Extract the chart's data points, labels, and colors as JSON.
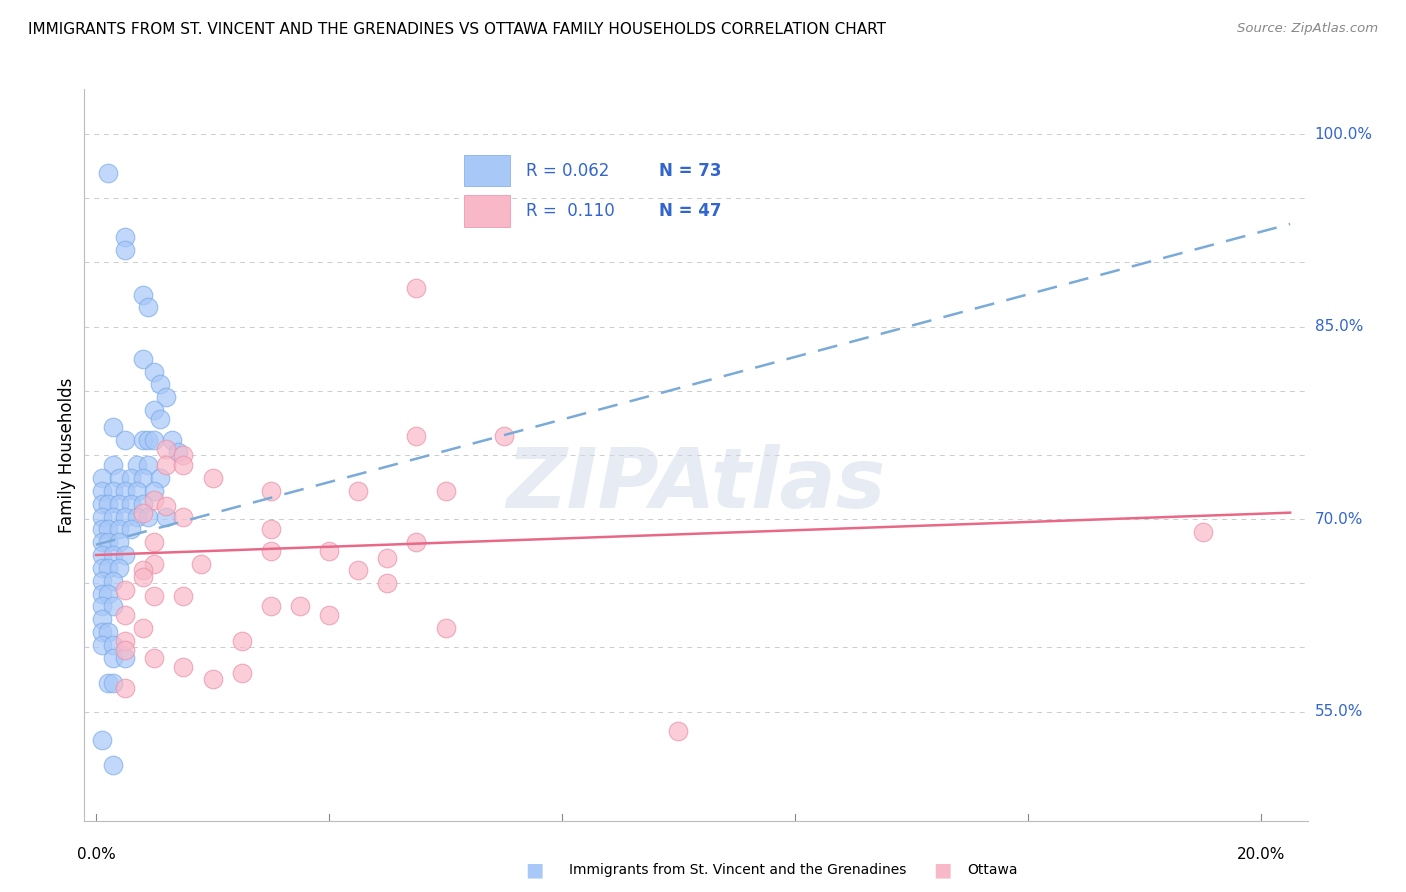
{
  "title": "IMMIGRANTS FROM ST. VINCENT AND THE GRENADINES VS OTTAWA FAMILY HOUSEHOLDS CORRELATION CHART",
  "source": "Source: ZipAtlas.com",
  "ylabel": "Family Households",
  "ymin": 0.465,
  "ymax": 1.035,
  "xmin": -0.002,
  "xmax": 0.208,
  "blue_color": "#a8c8f8",
  "pink_color": "#f8b8c8",
  "blue_edge_color": "#7aaae8",
  "pink_edge_color": "#e890a8",
  "blue_line_color": "#7aaad8",
  "pink_line_color": "#e86888",
  "legend_text_color": "#3366cc",
  "ytick_positions": [
    0.55,
    0.7,
    0.85,
    1.0
  ],
  "ytick_labels": [
    "55.0%",
    "70.0%",
    "85.0%",
    "100.0%"
  ],
  "ytick_minor": [
    0.55,
    0.6,
    0.65,
    0.7,
    0.75,
    0.8,
    0.85,
    0.9,
    0.95,
    1.0
  ],
  "xtick_positions": [
    0.0,
    0.04,
    0.08,
    0.12,
    0.16,
    0.2
  ],
  "watermark": "ZIPAtlas",
  "blue_trend_x": [
    0.0,
    0.205
  ],
  "blue_trend_y": [
    0.68,
    0.93
  ],
  "pink_trend_x": [
    0.0,
    0.205
  ],
  "pink_trend_y": [
    0.672,
    0.705
  ],
  "blue_dots": [
    [
      0.002,
      0.97
    ],
    [
      0.005,
      0.92
    ],
    [
      0.005,
      0.91
    ],
    [
      0.008,
      0.875
    ],
    [
      0.009,
      0.865
    ],
    [
      0.008,
      0.825
    ],
    [
      0.01,
      0.815
    ],
    [
      0.011,
      0.805
    ],
    [
      0.012,
      0.795
    ],
    [
      0.01,
      0.785
    ],
    [
      0.011,
      0.778
    ],
    [
      0.003,
      0.772
    ],
    [
      0.005,
      0.762
    ],
    [
      0.008,
      0.762
    ],
    [
      0.009,
      0.762
    ],
    [
      0.01,
      0.762
    ],
    [
      0.013,
      0.762
    ],
    [
      0.014,
      0.752
    ],
    [
      0.003,
      0.742
    ],
    [
      0.007,
      0.742
    ],
    [
      0.009,
      0.742
    ],
    [
      0.001,
      0.732
    ],
    [
      0.004,
      0.732
    ],
    [
      0.006,
      0.732
    ],
    [
      0.008,
      0.732
    ],
    [
      0.011,
      0.732
    ],
    [
      0.001,
      0.722
    ],
    [
      0.003,
      0.722
    ],
    [
      0.005,
      0.722
    ],
    [
      0.007,
      0.722
    ],
    [
      0.01,
      0.722
    ],
    [
      0.001,
      0.712
    ],
    [
      0.002,
      0.712
    ],
    [
      0.004,
      0.712
    ],
    [
      0.006,
      0.712
    ],
    [
      0.008,
      0.712
    ],
    [
      0.001,
      0.702
    ],
    [
      0.003,
      0.702
    ],
    [
      0.005,
      0.702
    ],
    [
      0.007,
      0.702
    ],
    [
      0.009,
      0.702
    ],
    [
      0.012,
      0.702
    ],
    [
      0.001,
      0.692
    ],
    [
      0.002,
      0.692
    ],
    [
      0.004,
      0.692
    ],
    [
      0.006,
      0.692
    ],
    [
      0.001,
      0.682
    ],
    [
      0.002,
      0.682
    ],
    [
      0.004,
      0.682
    ],
    [
      0.001,
      0.672
    ],
    [
      0.003,
      0.672
    ],
    [
      0.005,
      0.672
    ],
    [
      0.001,
      0.662
    ],
    [
      0.002,
      0.662
    ],
    [
      0.004,
      0.662
    ],
    [
      0.001,
      0.652
    ],
    [
      0.003,
      0.652
    ],
    [
      0.001,
      0.642
    ],
    [
      0.002,
      0.642
    ],
    [
      0.001,
      0.632
    ],
    [
      0.003,
      0.632
    ],
    [
      0.001,
      0.622
    ],
    [
      0.001,
      0.612
    ],
    [
      0.002,
      0.612
    ],
    [
      0.001,
      0.602
    ],
    [
      0.003,
      0.602
    ],
    [
      0.003,
      0.592
    ],
    [
      0.005,
      0.592
    ],
    [
      0.002,
      0.572
    ],
    [
      0.003,
      0.572
    ],
    [
      0.001,
      0.528
    ],
    [
      0.003,
      0.508
    ]
  ],
  "pink_dots": [
    [
      0.055,
      0.88
    ],
    [
      0.055,
      0.765
    ],
    [
      0.07,
      0.765
    ],
    [
      0.012,
      0.755
    ],
    [
      0.015,
      0.75
    ],
    [
      0.012,
      0.742
    ],
    [
      0.015,
      0.742
    ],
    [
      0.02,
      0.732
    ],
    [
      0.03,
      0.722
    ],
    [
      0.045,
      0.722
    ],
    [
      0.06,
      0.722
    ],
    [
      0.01,
      0.715
    ],
    [
      0.012,
      0.71
    ],
    [
      0.008,
      0.705
    ],
    [
      0.015,
      0.702
    ],
    [
      0.03,
      0.692
    ],
    [
      0.01,
      0.682
    ],
    [
      0.055,
      0.682
    ],
    [
      0.03,
      0.675
    ],
    [
      0.04,
      0.675
    ],
    [
      0.05,
      0.67
    ],
    [
      0.01,
      0.665
    ],
    [
      0.018,
      0.665
    ],
    [
      0.008,
      0.66
    ],
    [
      0.045,
      0.66
    ],
    [
      0.008,
      0.655
    ],
    [
      0.05,
      0.65
    ],
    [
      0.005,
      0.645
    ],
    [
      0.01,
      0.64
    ],
    [
      0.015,
      0.64
    ],
    [
      0.03,
      0.632
    ],
    [
      0.035,
      0.632
    ],
    [
      0.005,
      0.625
    ],
    [
      0.04,
      0.625
    ],
    [
      0.008,
      0.615
    ],
    [
      0.06,
      0.615
    ],
    [
      0.005,
      0.605
    ],
    [
      0.025,
      0.605
    ],
    [
      0.005,
      0.598
    ],
    [
      0.01,
      0.592
    ],
    [
      0.015,
      0.585
    ],
    [
      0.025,
      0.58
    ],
    [
      0.02,
      0.575
    ],
    [
      0.005,
      0.568
    ],
    [
      0.1,
      0.535
    ],
    [
      0.19,
      0.69
    ]
  ]
}
